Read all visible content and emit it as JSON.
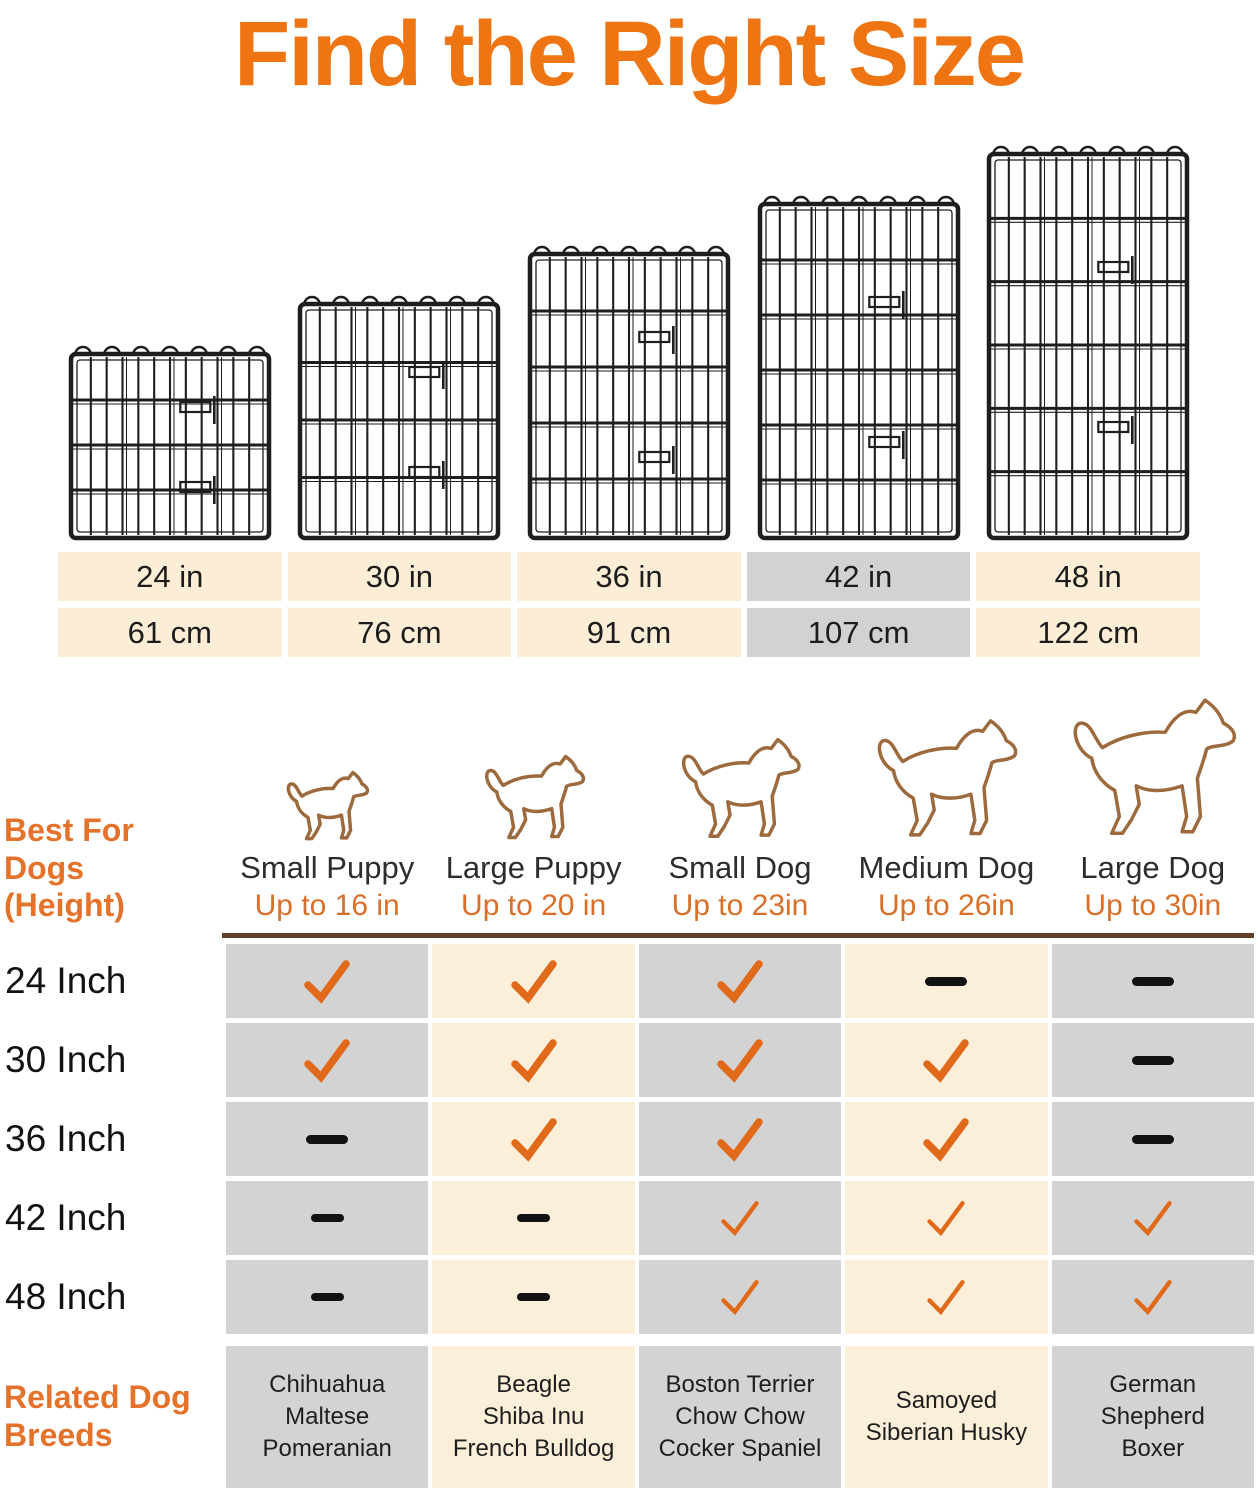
{
  "title": "Find the Right Size",
  "colors": {
    "accent_orange": "#ee7512",
    "subtitle_orange": "#d96f28",
    "check_orange": "#e06a1a",
    "cell_cream": "#fceed6",
    "cell_gray": "#d3d3d3",
    "rule_brown": "#5d4124",
    "dog_outline_brown": "#9c6a3d",
    "wire_black": "#1e1e1e"
  },
  "size_table": {
    "inches": [
      "24 in",
      "30 in",
      "36 in",
      "42 in",
      "48 in"
    ],
    "cm": [
      "61 cm",
      "76 cm",
      "91 cm",
      "107 cm",
      "122 cm"
    ],
    "highlighted_index": 3
  },
  "panels": {
    "heights_in": [
      24,
      30,
      36,
      42,
      48
    ]
  },
  "fit_table": {
    "row_header_title": "Best For Dogs (Height)",
    "columns": [
      {
        "name": "Small Puppy",
        "height": "Up to 16 in"
      },
      {
        "name": "Large Puppy",
        "height": "Up to 20 in"
      },
      {
        "name": "Small Dog",
        "height": "Up to 23in"
      },
      {
        "name": "Medium Dog",
        "height": "Up to 26in"
      },
      {
        "name": "Large Dog",
        "height": "Up to 30in"
      }
    ],
    "rows": [
      {
        "label": "24 Inch",
        "cells": [
          "check",
          "check",
          "check",
          "dash",
          "dash"
        ]
      },
      {
        "label": "30 Inch",
        "cells": [
          "check",
          "check",
          "check",
          "check",
          "dash"
        ]
      },
      {
        "label": "36 Inch",
        "cells": [
          "dash",
          "check",
          "check",
          "check",
          "dash"
        ]
      },
      {
        "label": "42 Inch",
        "cells": [
          "dash",
          "dash",
          "check",
          "check",
          "check"
        ]
      },
      {
        "label": "48 Inch",
        "cells": [
          "dash",
          "dash",
          "check",
          "check",
          "check"
        ]
      }
    ],
    "breeds_title": "Related Dog Breeds",
    "breeds": [
      [
        "Chihuahua",
        "Maltese",
        "Pomeranian"
      ],
      [
        "Beagle",
        "Shiba Inu",
        "French Bulldog"
      ],
      [
        "Boston Terrier",
        "Chow Chow",
        "Cocker Spaniel"
      ],
      [
        "Samoyed",
        "Siberian Husky"
      ],
      [
        "German Shepherd",
        "Boxer"
      ]
    ]
  }
}
